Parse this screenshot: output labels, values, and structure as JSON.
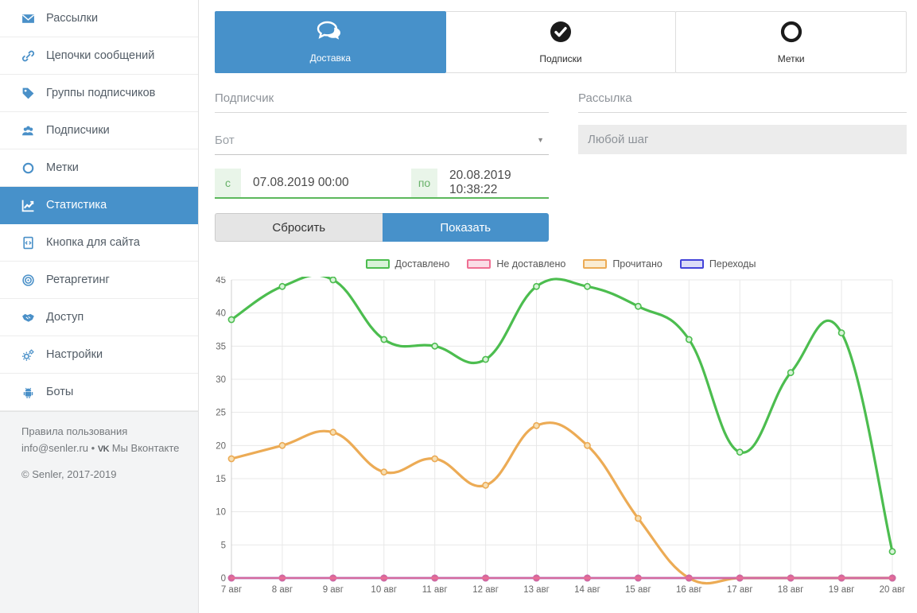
{
  "colors": {
    "accent": "#4791ca",
    "sidebar_icon": "#4a90c8",
    "date_green": "#5cb85c",
    "tab_icon_dark": "#1b1b1b"
  },
  "icons": {
    "select_caret": "▼",
    "vk_logo": "VK"
  },
  "sidebar": {
    "items": [
      {
        "label": "Рассылки",
        "icon": "envelope-icon",
        "active": false
      },
      {
        "label": "Цепочки сообщений",
        "icon": "chain-icon",
        "active": false
      },
      {
        "label": "Группы подписчиков",
        "icon": "tag-icon",
        "active": false
      },
      {
        "label": "Подписчики",
        "icon": "users-icon",
        "active": false
      },
      {
        "label": "Метки",
        "icon": "circle-icon",
        "active": false
      },
      {
        "label": "Статистика",
        "icon": "chart-line-icon",
        "active": true
      },
      {
        "label": "Кнопка для сайта",
        "icon": "code-file-icon",
        "active": false
      },
      {
        "label": "Ретаргетинг",
        "icon": "target-icon",
        "active": false
      },
      {
        "label": "Доступ",
        "icon": "handshake-icon",
        "active": false
      },
      {
        "label": "Настройки",
        "icon": "gears-icon",
        "active": false
      },
      {
        "label": "Боты",
        "icon": "robot-icon",
        "active": false
      }
    ],
    "footer": {
      "terms": "Правила пользования",
      "email": "info@senler.ru",
      "separator": "•",
      "vk_label": "Мы Вконтакте",
      "copyright": "© Senler, 2017-2019"
    }
  },
  "tabs": [
    {
      "label": "Доставка",
      "icon": "chat-bubbles-icon",
      "active": true
    },
    {
      "label": "Подписки",
      "icon": "check-circle-icon",
      "active": false
    },
    {
      "label": "Метки",
      "icon": "ring-icon",
      "active": false
    }
  ],
  "filters": {
    "subscriber_label": "Подписчик",
    "mailing_label": "Рассылка",
    "bot_value": "Бот",
    "step_value": "Любой шаг",
    "date_from_label": "с",
    "date_from_value": "07.08.2019 00:00",
    "date_to_label": "по",
    "date_to_value": "20.08.2019 10:38:22",
    "reset_label": "Сбросить",
    "show_label": "Показать"
  },
  "chart_data": {
    "type": "line",
    "title": "",
    "xlabel": "",
    "ylabel": "",
    "x": [
      "7 авг",
      "8 авг",
      "9 авг",
      "10 авг",
      "11 авг",
      "12 авг",
      "13 авг",
      "14 авг",
      "15 авг",
      "16 авг",
      "17 авг",
      "18 авг",
      "19 авг",
      "20 авг"
    ],
    "series": [
      {
        "name": "Доставлено",
        "color": "#4cbd4f",
        "legend_fill": "#d8f2d8",
        "marker_fill": "#d8f2d8",
        "line_width": 3.2,
        "values": [
          39,
          44,
          45,
          36,
          35,
          33,
          44,
          44,
          41,
          36,
          19,
          31,
          37,
          4
        ]
      },
      {
        "name": "Не доставлено",
        "color": "#ef6f93",
        "legend_fill": "#fadde6",
        "marker_fill": "#ef6f93",
        "line_width": 2.6,
        "line_opacity": 0.85,
        "values": [
          0,
          0,
          0,
          0,
          0,
          0,
          0,
          0,
          0,
          0,
          0,
          0,
          0,
          0
        ]
      },
      {
        "name": "Прочитано",
        "color": "#ecab55",
        "legend_fill": "#faecd2",
        "marker_fill": "#f6deb2",
        "line_width": 3.2,
        "values": [
          18,
          20,
          22,
          16,
          18,
          14,
          23,
          20,
          9,
          0,
          0,
          0,
          0,
          0
        ]
      },
      {
        "name": "Переходы",
        "color": "#4444d9",
        "legend_fill": "#dcdcf7",
        "marker_fill": "#4444d9",
        "line_width": 2.6,
        "values": [
          0,
          0,
          0,
          0,
          0,
          0,
          0,
          0,
          0,
          0,
          0,
          0,
          0,
          0
        ]
      }
    ],
    "ylim": [
      0,
      45
    ],
    "ytick_step": 5,
    "grid": true,
    "legend_position": "top",
    "draw_order": [
      2,
      0,
      3,
      1
    ]
  }
}
